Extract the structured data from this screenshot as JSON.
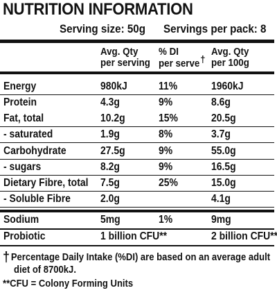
{
  "title": "NUTRITION INFORMATION",
  "serving": {
    "size": "Serving size: 50g",
    "per_pack": "Servings per pack: 8"
  },
  "columns": {
    "avg_serving_line1": "Avg. Qty",
    "avg_serving_line2": "per serving",
    "di_line1": "% DI",
    "di_line2": "per serve",
    "di_dagger": "†",
    "avg_100g_line1": "Avg. Qty",
    "avg_100g_line2": "per 100g"
  },
  "rows": [
    {
      "name": "Energy",
      "serving": "980kJ",
      "di": "11%",
      "per100": "1960kJ"
    },
    {
      "name": "Protein",
      "serving": "4.3g",
      "di": "9%",
      "per100": "8.6g"
    },
    {
      "name": "Fat, total",
      "serving": "10.2g",
      "di": "15%",
      "per100": "20.5g"
    },
    {
      "name": "- saturated",
      "serving": "1.9g",
      "di": "8%",
      "per100": "3.7g"
    },
    {
      "name": "Carbohydrate",
      "serving": "27.5g",
      "di": "9%",
      "per100": "55.0g"
    },
    {
      "name": "- sugars",
      "serving": "8.2g",
      "di": "9%",
      "per100": "16.5g"
    },
    {
      "name": "Dietary Fibre, total",
      "serving": "7.5g",
      "di": "25%",
      "per100": "15.0g"
    },
    {
      "name": "- Soluble Fibre",
      "serving": "2.0g",
      "di": "",
      "per100": "4.1g"
    },
    {
      "name": "Sodium",
      "serving": "5mg",
      "di": "1%",
      "per100": "9mg"
    },
    {
      "name": "Probiotic",
      "serving": "1 billion CFU**",
      "di": "",
      "per100": "2 billion CFU**"
    }
  ],
  "footnotes": {
    "dagger": "†",
    "line1": "Percentage Daily Intake (%DI) are based on an average adult",
    "line2": "diet of 8700kJ.",
    "line3": "**CFU = Colony Forming Units"
  }
}
